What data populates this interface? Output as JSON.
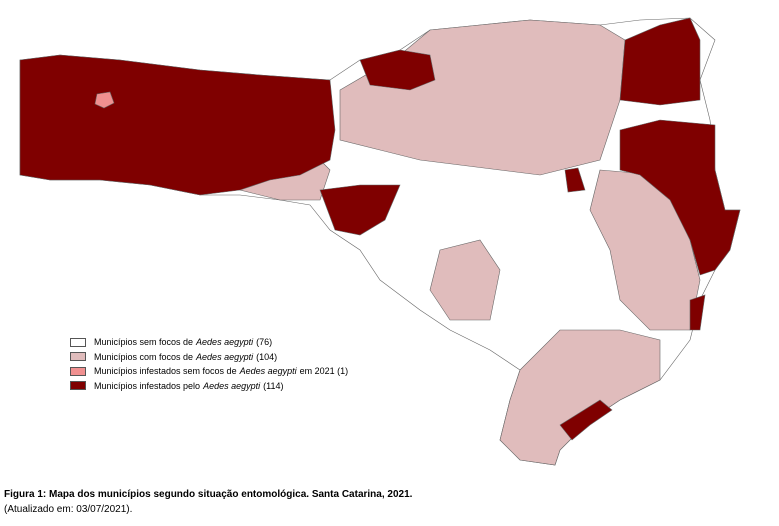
{
  "legend": [
    {
      "before": "Municípios sem focos de",
      "italic": "Aedes aegypti",
      "after": "(76)"
    },
    {
      "before": "Municípios com focos de",
      "italic": "Aedes aegypti",
      "after": "(104)"
    },
    {
      "before": "Municípios infestados sem focos de",
      "italic": "Aedes aegypti",
      "after": "em 2021 (1)"
    },
    {
      "before": "Municípios infestados pelo",
      "italic": "Aedes aegypti",
      "after": "(114)"
    }
  ],
  "caption": {
    "title": "Figura 1: Mapa dos municípios segundo situação entomológica. Santa Catarina, 2021.",
    "updated": "(Atualizado em: 03/07/2021)."
  }
}
